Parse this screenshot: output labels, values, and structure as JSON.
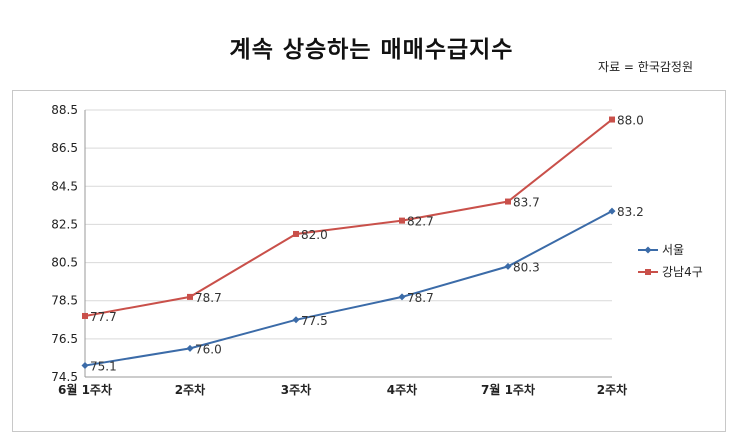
{
  "chart_data": {
    "type": "line",
    "title": "계속 상승하는 매매수급지수",
    "source": "자료 = 한국감정원",
    "categories": [
      "6월 1주차",
      "2주차",
      "3주차",
      "4주차",
      "7월 1주차",
      "2주차"
    ],
    "series": [
      {
        "name": "서울",
        "values": [
          75.1,
          76.0,
          77.5,
          78.7,
          80.3,
          83.2
        ],
        "color": "#3b6ba8"
      },
      {
        "name": "강남4구",
        "values": [
          77.7,
          78.7,
          82.0,
          82.7,
          83.7,
          88.0
        ],
        "color": "#c9504a"
      }
    ],
    "ylim": [
      74.5,
      88.5
    ],
    "yticks": [
      74.5,
      76.5,
      78.5,
      80.5,
      82.5,
      84.5,
      86.5,
      88.5
    ],
    "ytick_labels": [
      "74.5",
      "76.5",
      "78.5",
      "80.5",
      "82.5",
      "84.5",
      "86.5",
      "88.5"
    ],
    "data_labels": [
      [
        "75.1",
        "76.0",
        "77.5",
        "78.7",
        "80.3",
        "83.2"
      ],
      [
        "77.7",
        "78.7",
        "82.0",
        "82.7",
        "83.7",
        "88.0"
      ]
    ],
    "grid": true,
    "legend": "right"
  }
}
